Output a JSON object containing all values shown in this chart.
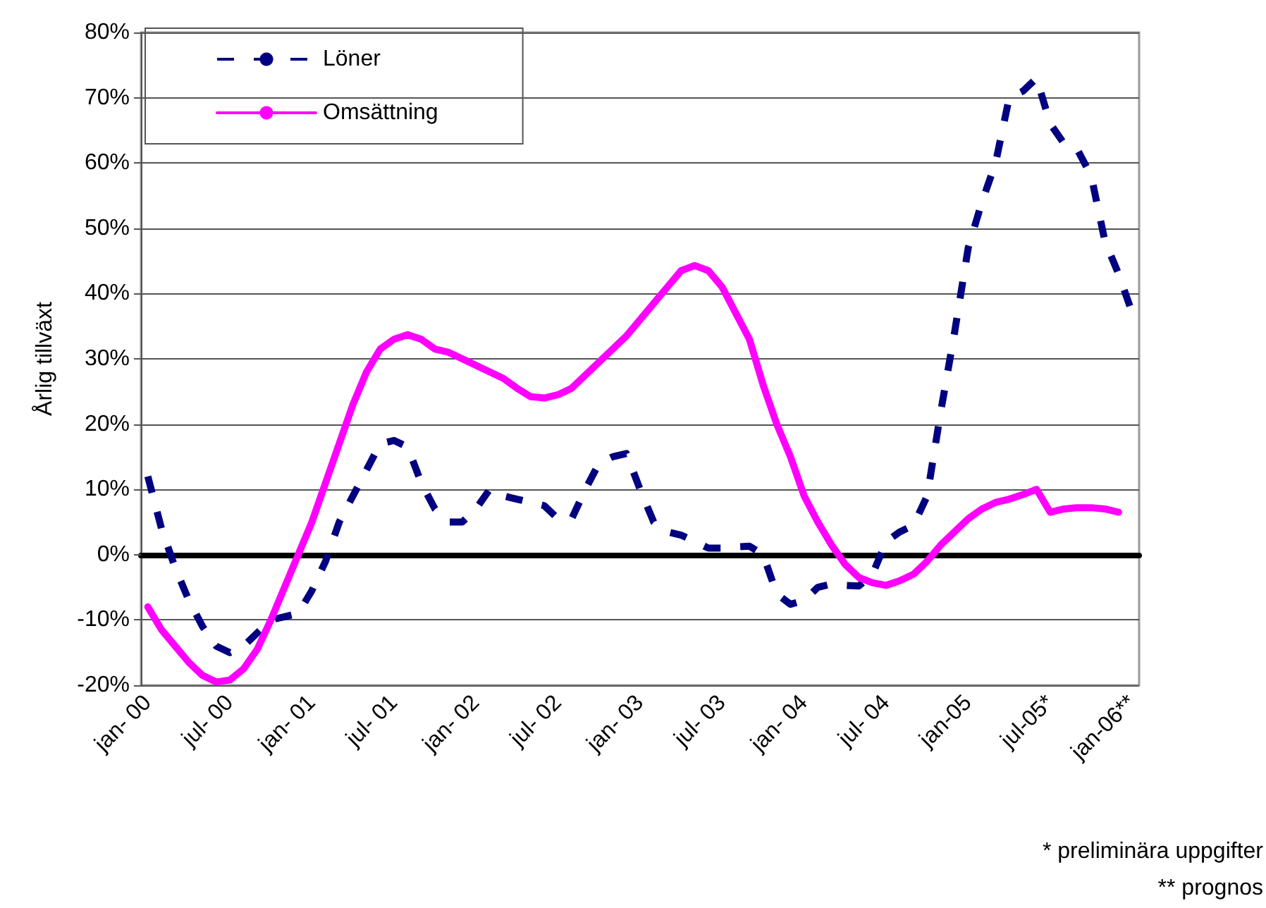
{
  "chart_data": {
    "type": "line",
    "ylabel": "Årlig tillväxt",
    "categories": [
      "jan- 00",
      null,
      null,
      null,
      null,
      null,
      "jul- 00",
      null,
      null,
      null,
      null,
      null,
      "jan- 01",
      null,
      null,
      null,
      null,
      null,
      "jul- 01",
      null,
      null,
      null,
      null,
      null,
      "jan- 02",
      null,
      null,
      null,
      null,
      null,
      "jul- 02",
      null,
      null,
      null,
      null,
      null,
      "jan- 03",
      null,
      null,
      null,
      null,
      null,
      "jul- 03",
      null,
      null,
      null,
      null,
      null,
      "jan- 04",
      null,
      null,
      null,
      null,
      null,
      "jul- 04",
      null,
      null,
      null,
      null,
      null,
      "jan-05",
      null,
      null,
      null,
      null,
      null,
      "jul-05*",
      null,
      null,
      null,
      null,
      null,
      "jan-06**"
    ],
    "series": [
      {
        "name": "Löner",
        "color": "#000080",
        "line_style": "dashed",
        "values": [
          12,
          4,
          -2,
          -7,
          -11,
          -14,
          -15,
          -14,
          -12,
          -10,
          -9.5,
          -9,
          -5.5,
          -1,
          5,
          9,
          13,
          17,
          17.5,
          16.5,
          11,
          7,
          5,
          5,
          7,
          10,
          9,
          8.5,
          8,
          7.5,
          5.5,
          5.5,
          10,
          14,
          15,
          15.5,
          10,
          5,
          3.5,
          3,
          2,
          1,
          1,
          1.2,
          1.3,
          0,
          -6,
          -7.6,
          -7,
          -5,
          -4.5,
          -4.7,
          -4.8,
          -3,
          2,
          3.5,
          4.5,
          9,
          22,
          34,
          47,
          54,
          60,
          70,
          71,
          73,
          66,
          63,
          62,
          58,
          48,
          43,
          37
        ]
      },
      {
        "name": "Omsättning",
        "color": "#ff00ff",
        "line_style": "solid",
        "values": [
          -8,
          -11.5,
          -14,
          -16.5,
          -18.5,
          -19.5,
          -19.2,
          -17.5,
          -14.5,
          -10,
          -5,
          0,
          5,
          11,
          17,
          23,
          28,
          31.5,
          33,
          33.7,
          33,
          31.5,
          31,
          30,
          29,
          28,
          27,
          25.5,
          24.2,
          24,
          24.5,
          25.5,
          27.5,
          29.5,
          31.5,
          33.5,
          36,
          38.5,
          41,
          43.5,
          44.3,
          43.5,
          41,
          37,
          33,
          26,
          20,
          15,
          9,
          5,
          1.5,
          -1.5,
          -3.5,
          -4.3,
          -4.7,
          -4,
          -3,
          -1,
          1.5,
          3.5,
          5.5,
          7,
          8,
          8.5,
          9.2,
          10,
          6.5,
          7,
          7.2,
          7.2,
          7,
          6.5,
          null
        ]
      }
    ],
    "ylim": [
      -20,
      80
    ],
    "yticks": [
      {
        "value": -20,
        "label": "-20%"
      },
      {
        "value": -10,
        "label": "-10%"
      },
      {
        "value": 0,
        "label": "0%"
      },
      {
        "value": 10,
        "label": "10%"
      },
      {
        "value": 20,
        "label": "20%"
      },
      {
        "value": 30,
        "label": "30%"
      },
      {
        "value": 40,
        "label": "40%"
      },
      {
        "value": 50,
        "label": "50%"
      },
      {
        "value": 60,
        "label": "60%"
      },
      {
        "value": 70,
        "label": "70%"
      },
      {
        "value": 80,
        "label": "80%"
      }
    ],
    "grid": "y",
    "legend": "top left",
    "marker": "none",
    "annotations": [
      "* preliminära uppgifter",
      "** prognos"
    ]
  }
}
